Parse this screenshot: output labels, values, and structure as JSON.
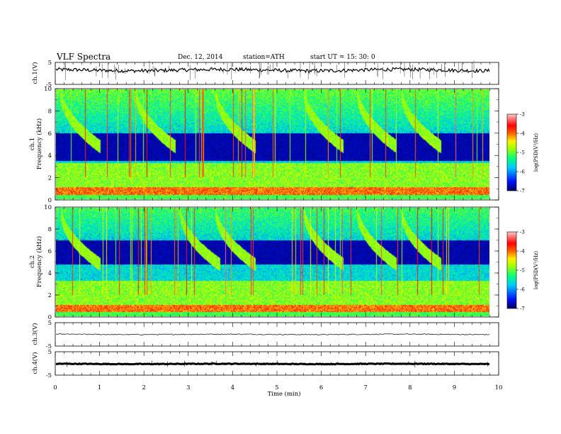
{
  "header": {
    "title": "VLF  Spectra",
    "date": "Dec. 12, 2014",
    "station": "station=ATH",
    "start": "start  UT  =   15: 30: 0"
  },
  "colors": {
    "background": "#ffffff",
    "axis": "#000000",
    "dark_band": "#00003a",
    "colormap": [
      "#000060",
      "#0010ff",
      "#00c8ff",
      "#00ff80",
      "#a0ff00",
      "#ffee00",
      "#ff6000",
      "#ff0000",
      "#ffc8c8"
    ]
  },
  "chart_data": [
    {
      "type": "line",
      "name": "ch1-waveform",
      "ylabel": "ch.1(V)",
      "ylim": [
        -5,
        5
      ],
      "yticks": [
        "5",
        "-5"
      ],
      "baseline_value": 1.5
    },
    {
      "type": "heatmap",
      "name": "ch1-spectrogram",
      "ylabel_line1": "ch.1",
      "ylabel_line2": "Frequency  (kHz)",
      "ylim": [
        0,
        10
      ],
      "yticks": [
        "0",
        "2",
        "4",
        "6",
        "8",
        "10"
      ],
      "dark_band_khz": [
        3.5,
        6.0
      ],
      "whistler_times_min": [
        0.1,
        1.8,
        3.6,
        5.6,
        6.8,
        7.8
      ],
      "colorbar": {
        "label": "log(PSD(V²/Hz)",
        "range": [
          -7,
          -3
        ],
        "ticks": [
          "-3",
          "-4",
          "-5",
          "-6",
          "-7"
        ]
      }
    },
    {
      "type": "heatmap",
      "name": "ch2-spectrogram",
      "ylabel_line1": "ch.2",
      "ylabel_line2": "Frequency  (kHz)",
      "ylim": [
        0,
        10
      ],
      "yticks": [
        "0",
        "2",
        "4",
        "6",
        "8",
        "10"
      ],
      "dark_band_khz": [
        4.8,
        7.0
      ],
      "whistler_times_min": [
        0.1,
        2.8,
        3.6,
        5.6,
        6.8,
        7.8
      ],
      "colorbar": {
        "label": "log(PSD(V²/Hz)",
        "range": [
          -7,
          -3
        ],
        "ticks": [
          "-3",
          "-4",
          "-5",
          "-6",
          "-7"
        ]
      }
    },
    {
      "type": "line",
      "name": "ch3-waveform",
      "ylabel": "ch.3(V)",
      "ylim": [
        -5,
        5
      ],
      "yticks": [
        "5",
        "-5"
      ],
      "baseline_value": 0.0
    },
    {
      "type": "line",
      "name": "ch4-waveform",
      "ylabel": "ch.4(V)",
      "ylim": [
        -5,
        5
      ],
      "yticks": [
        "5",
        "-5"
      ],
      "baseline_value": -0.2
    }
  ],
  "xaxis": {
    "label": "Time  (min)",
    "range": [
      0,
      10
    ],
    "data_end_min": 9.8,
    "ticks": [
      "0",
      "1",
      "2",
      "3",
      "4",
      "5",
      "6",
      "7",
      "8",
      "9",
      "10"
    ]
  }
}
